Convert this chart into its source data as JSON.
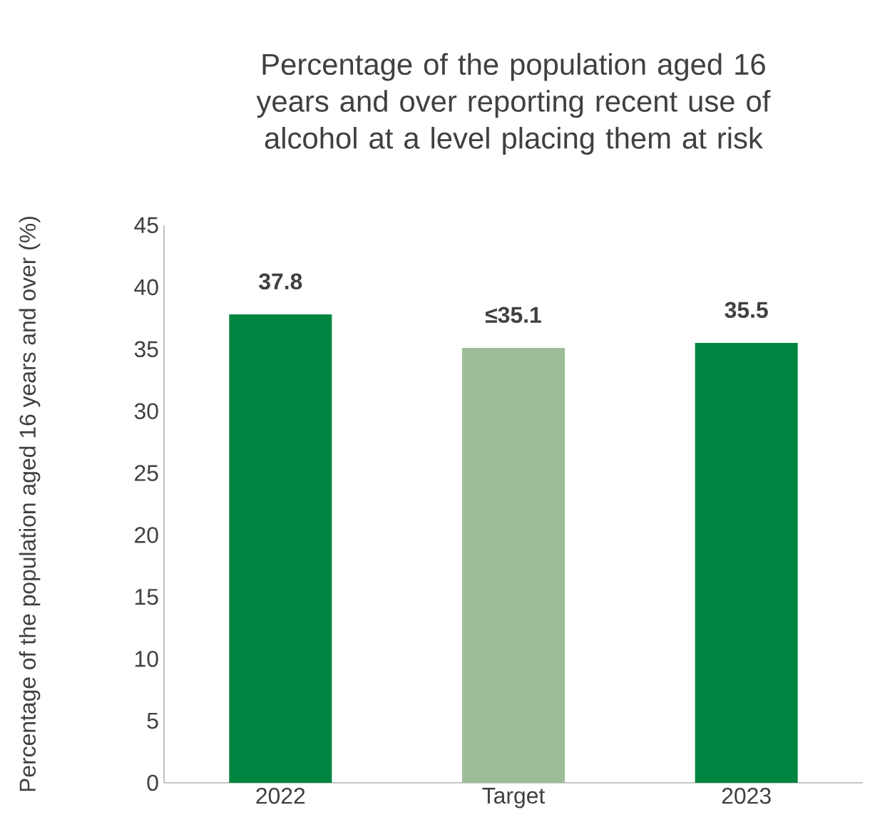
{
  "chart_data": {
    "type": "bar",
    "title": "Percentage of the population aged 16 years and over reporting recent use of alcohol at a level placing them at risk",
    "ylabel": "Percentage of the population aged 16 years and over (%)",
    "categories": [
      "2022",
      "Target",
      "2023"
    ],
    "values": [
      37.8,
      35.1,
      35.5
    ],
    "colors": [
      "#00843f",
      "#9dbd98",
      "#00843f"
    ],
    "value_labels": [
      "37.8",
      "≤35.1",
      "35.5"
    ],
    "ylim": [
      0,
      45
    ],
    "yticks": [
      0,
      5,
      10,
      15,
      20,
      25,
      30,
      35,
      40,
      45
    ]
  }
}
